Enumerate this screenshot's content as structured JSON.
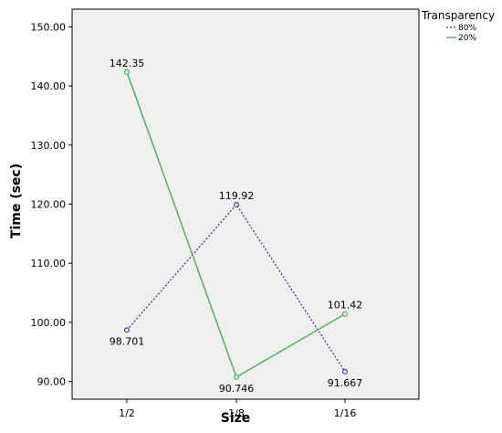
{
  "chart_data": {
    "type": "line",
    "title": "",
    "xlabel": "Size",
    "ylabel": "Time (sec)",
    "categories": [
      "1/2",
      "1/8",
      "1/16"
    ],
    "ylim": [
      87,
      153
    ],
    "yticks": [
      90,
      100,
      110,
      120,
      130,
      140,
      150
    ],
    "ytick_labels": [
      "90.00",
      "100.00",
      "110.00",
      "120.00",
      "130.00",
      "140.00",
      "150.00"
    ],
    "grid": false,
    "legend": {
      "title": "Transparency",
      "placement": "top-right"
    },
    "series": [
      {
        "name": "80%",
        "style": "dotted",
        "color": "#3b3b9e",
        "values": [
          98.701,
          119.92,
          91.667
        ],
        "labels": [
          "98.701",
          "119.92",
          "91.667"
        ]
      },
      {
        "name": "20%",
        "style": "solid",
        "color": "#3cb44b",
        "values": [
          142.35,
          90.746,
          101.42
        ],
        "labels": [
          "142.35",
          "90.746",
          "101.42"
        ]
      }
    ],
    "plot_background": "#efefef"
  }
}
